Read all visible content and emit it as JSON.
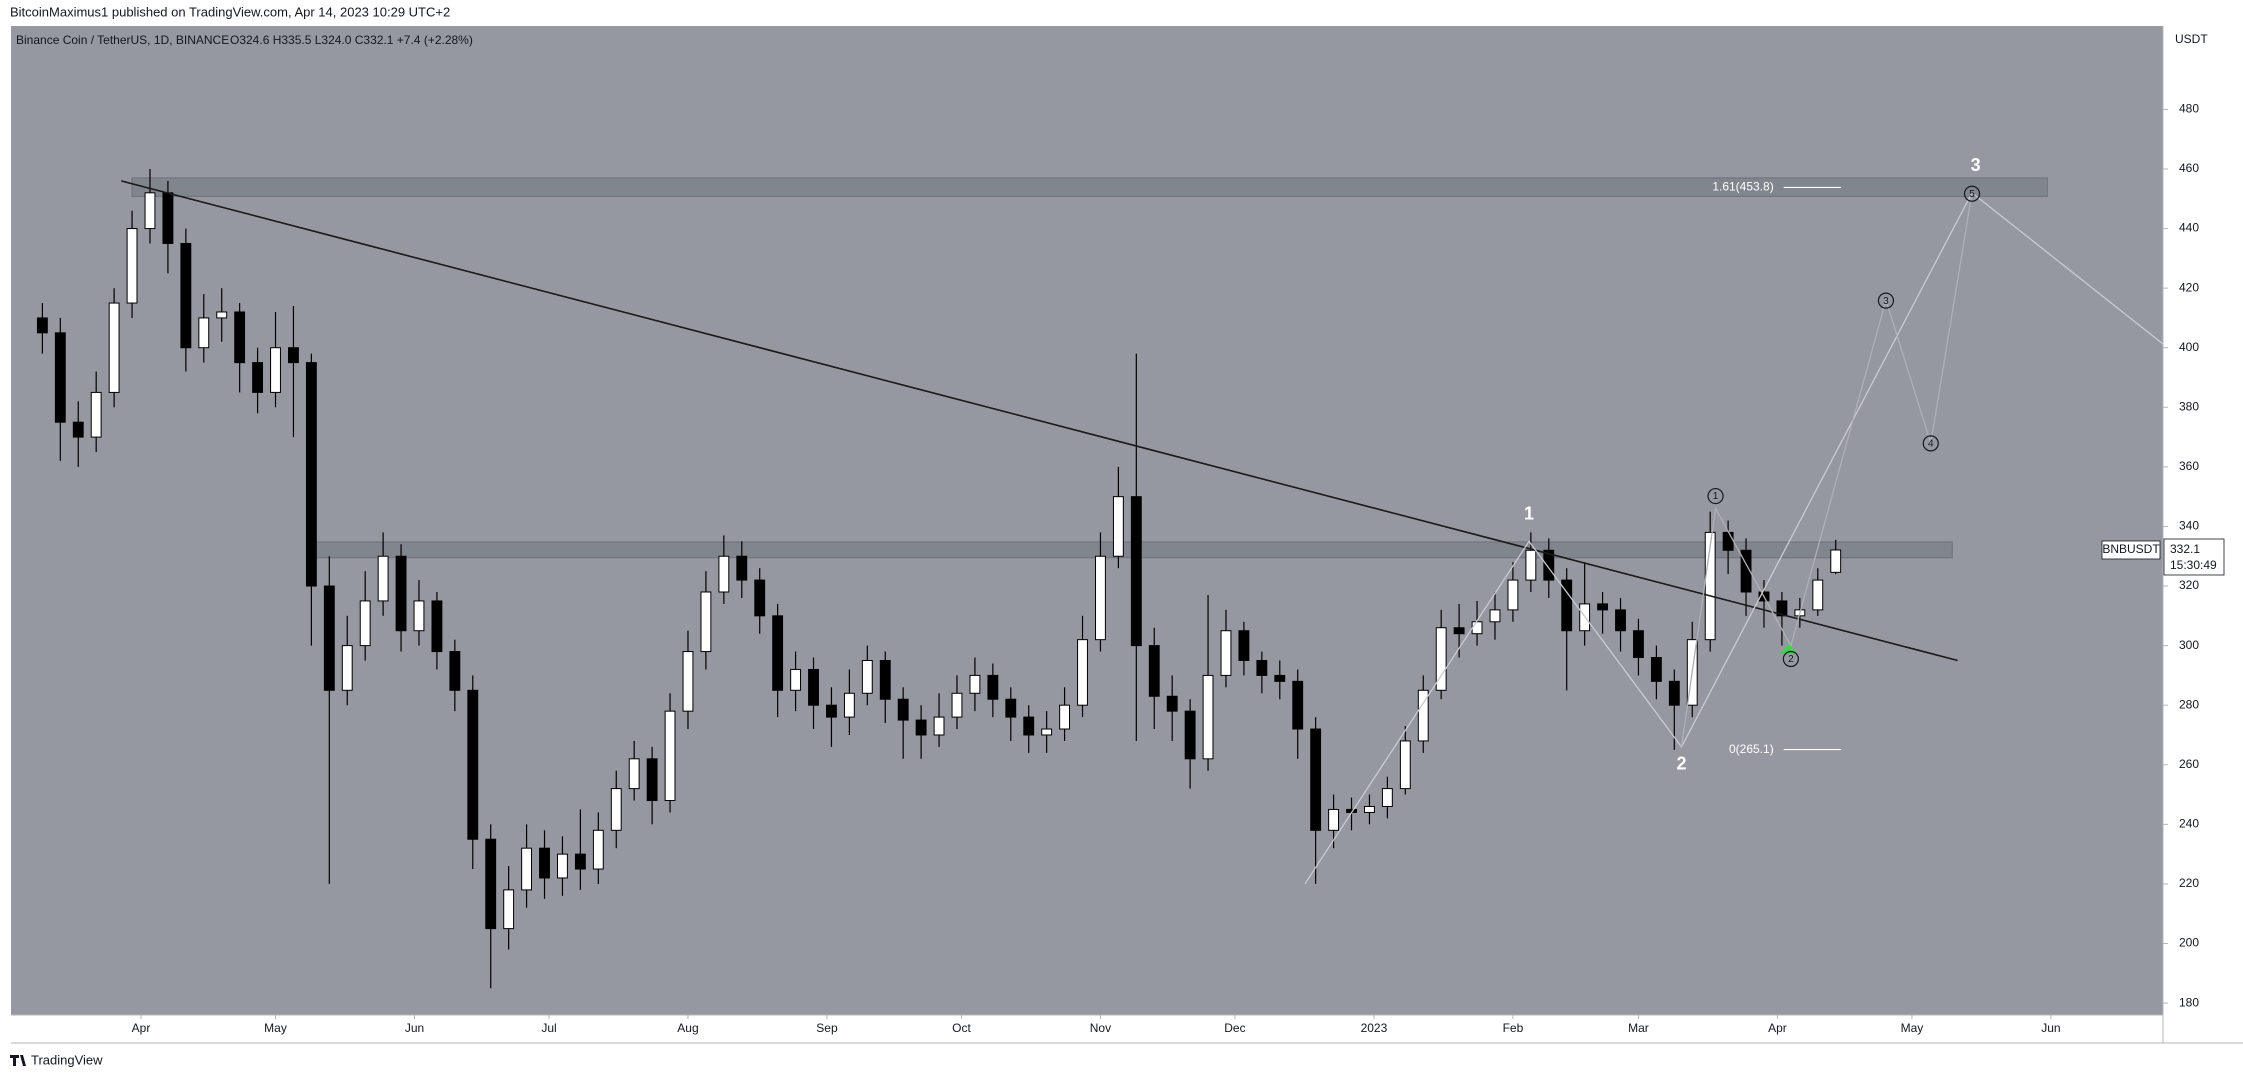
{
  "header": {
    "publisher": "BitcoinMaximus1 published on TradingView.com, Apr 14, 2023 10:29 UTC+2"
  },
  "footer": {
    "brand": "TradingView"
  },
  "chart_data": {
    "type": "candlestick",
    "title": "Binance Coin / TetherUS, 1D, BINANCE",
    "ohlc_legend": "O324.6 H335.5 L324.0 C332.1 +7.4 (+2.28%)",
    "symbol": "BNBUSDT",
    "countdown": "15:30:49",
    "y_unit": "USDT",
    "open": [
      410,
      405,
      375,
      370,
      385,
      415,
      440,
      452,
      435,
      400,
      410,
      412,
      395,
      385,
      400,
      395,
      320,
      285,
      300,
      315,
      330,
      305,
      315,
      298,
      285,
      235,
      205,
      218,
      232,
      222,
      230,
      225,
      238,
      252,
      262,
      248,
      278,
      298,
      318,
      330,
      322,
      310,
      285,
      292,
      280,
      276,
      284,
      295,
      282,
      275,
      270,
      276,
      284,
      290,
      282,
      276,
      270,
      272,
      280,
      302,
      330,
      350,
      300,
      283,
      278,
      262,
      290,
      305,
      295,
      290,
      288,
      272,
      238,
      245,
      244,
      246,
      252,
      268,
      285,
      306,
      304,
      308,
      312,
      322,
      332,
      322,
      305,
      314,
      312,
      305,
      296,
      288,
      280,
      302,
      338,
      332,
      318,
      315,
      310,
      312,
      324.6
    ],
    "high": [
      415,
      410,
      382,
      392,
      420,
      446,
      460,
      456,
      440,
      418,
      420,
      415,
      400,
      412,
      414,
      398,
      330,
      310,
      325,
      338,
      334,
      322,
      318,
      302,
      290,
      240,
      226,
      240,
      238,
      236,
      245,
      244,
      258,
      268,
      266,
      284,
      305,
      325,
      337,
      335,
      326,
      314,
      298,
      296,
      286,
      292,
      300,
      298,
      286,
      280,
      284,
      290,
      296,
      294,
      286,
      280,
      278,
      286,
      310,
      338,
      360,
      398,
      306,
      290,
      282,
      317,
      312,
      308,
      298,
      295,
      292,
      276,
      250,
      249,
      250,
      256,
      273,
      290,
      312,
      314,
      315,
      318,
      328,
      338,
      336,
      326,
      328,
      318,
      316,
      309,
      300,
      292,
      308,
      345,
      342,
      336,
      322,
      318,
      316,
      326,
      335.5
    ],
    "low": [
      398,
      362,
      360,
      365,
      380,
      410,
      435,
      425,
      392,
      395,
      402,
      385,
      378,
      380,
      370,
      300,
      220,
      280,
      295,
      310,
      298,
      300,
      292,
      278,
      225,
      185,
      198,
      212,
      215,
      216,
      218,
      220,
      232,
      248,
      240,
      244,
      272,
      292,
      314,
      316,
      304,
      276,
      278,
      272,
      266,
      270,
      280,
      274,
      262,
      262,
      266,
      272,
      278,
      276,
      268,
      264,
      264,
      268,
      276,
      298,
      326,
      268,
      272,
      268,
      252,
      258,
      286,
      290,
      284,
      282,
      262,
      220,
      232,
      238,
      240,
      242,
      250,
      264,
      282,
      296,
      300,
      302,
      308,
      318,
      316,
      285,
      300,
      304,
      298,
      290,
      282,
      265,
      276,
      298,
      324,
      310,
      306,
      300,
      306,
      310,
      324.0
    ],
    "close": [
      405,
      375,
      370,
      385,
      415,
      440,
      452,
      435,
      400,
      410,
      412,
      395,
      385,
      400,
      395,
      320,
      285,
      300,
      315,
      330,
      305,
      315,
      298,
      285,
      235,
      205,
      218,
      232,
      222,
      230,
      225,
      238,
      252,
      262,
      248,
      278,
      298,
      318,
      330,
      322,
      310,
      285,
      292,
      280,
      276,
      284,
      295,
      282,
      275,
      270,
      276,
      284,
      290,
      282,
      276,
      270,
      272,
      280,
      302,
      330,
      350,
      300,
      283,
      278,
      262,
      290,
      305,
      295,
      290,
      288,
      272,
      238,
      245,
      244,
      246,
      252,
      268,
      285,
      306,
      304,
      308,
      312,
      322,
      332,
      322,
      305,
      314,
      312,
      305,
      296,
      288,
      280,
      302,
      338,
      332,
      318,
      315,
      310,
      312,
      322,
      332.1
    ],
    "up_color": "#ffffff",
    "down_color": "#000000",
    "wick_color": "#000000",
    "background": "#9598a1",
    "xlim": [
      -1.75,
      118.25
    ],
    "xticks": [
      {
        "value": 5.5,
        "label": "Apr"
      },
      {
        "value": 13,
        "label": "May"
      },
      {
        "value": 20.75,
        "label": "Jun"
      },
      {
        "value": 28.25,
        "label": "Jul"
      },
      {
        "value": 36,
        "label": "Aug"
      },
      {
        "value": 43.75,
        "label": "Sep"
      },
      {
        "value": 51.25,
        "label": "Oct"
      },
      {
        "value": 59,
        "label": "Nov"
      },
      {
        "value": 66.5,
        "label": "Dec"
      },
      {
        "value": 74.25,
        "label": "2023"
      },
      {
        "value": 82,
        "label": "Feb"
      },
      {
        "value": 89,
        "label": "Mar"
      },
      {
        "value": 96.75,
        "label": "Apr"
      },
      {
        "value": 104.25,
        "label": "May"
      },
      {
        "value": 112,
        "label": "Jun"
      }
    ],
    "ylim": [
      176,
      508
    ],
    "yticks": [
      180,
      200,
      220,
      240,
      260,
      280,
      300,
      320,
      340,
      360,
      380,
      400,
      420,
      440,
      460,
      480
    ],
    "grid": false,
    "zones": [
      {
        "x": [
          5.0,
          111.8
        ],
        "y": [
          450.8,
          457
        ],
        "color": "#7e8189"
      },
      {
        "x": [
          15.2,
          106.5
        ],
        "y": [
          329.5,
          334.8
        ],
        "color": "#7e8189"
      }
    ],
    "trendline": {
      "x": [
        4.4,
        106.8
      ],
      "y": [
        456,
        295
      ],
      "color": "#1a1a1a"
    },
    "wave_lines": [
      {
        "x": [
          70.4,
          82.9,
          91.4,
          107.6,
          118.3
        ],
        "y": [
          220,
          335,
          266,
          452,
          401
        ],
        "color": "#c9cbd1"
      },
      {
        "x": [
          91.4,
          93.3,
          97.5,
          102.8,
          105.3,
          107.6
        ],
        "y": [
          266,
          346,
          300,
          416,
          368,
          452
        ],
        "color": "#aeb0b6"
      }
    ],
    "wave_labels": [
      {
        "text": "1",
        "x": 82.9,
        "y": 344
      },
      {
        "text": "2",
        "x": 91.4,
        "y": 260
      },
      {
        "text": "3",
        "x": 107.8,
        "y": 461
      }
    ],
    "sub_wave_labels": [
      {
        "text": "1",
        "x": 93.3,
        "y": 350.2
      },
      {
        "text": "2",
        "x": 97.5,
        "y": 295.5
      },
      {
        "text": "3",
        "x": 102.8,
        "y": 415.8
      },
      {
        "text": "4",
        "x": 105.3,
        "y": 367.9
      },
      {
        "text": "5",
        "x": 107.6,
        "y": 451.7
      }
    ],
    "fib_levels": [
      {
        "label": "1.61(453.8)",
        "value": 453.8,
        "x": [
          97.1,
          100.3
        ]
      },
      {
        "label": "0(265.1)",
        "value": 265.1,
        "x": [
          97.1,
          100.3
        ]
      }
    ],
    "marker": {
      "x": 97.4,
      "y": 298.5,
      "color": "#3fd14f"
    }
  }
}
